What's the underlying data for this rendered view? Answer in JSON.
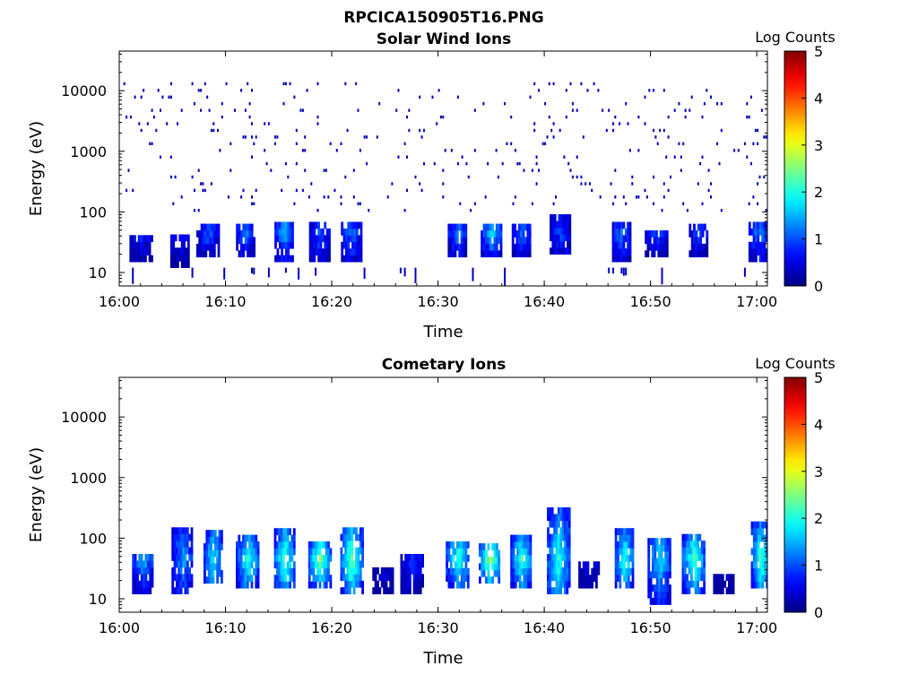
{
  "figure_title": "RPCICA150905T16.PNG",
  "colorbar": {
    "label": "Log Counts",
    "ticks": [
      "0",
      "1",
      "2",
      "3",
      "4",
      "5"
    ],
    "colormap": "jet",
    "range": [
      0,
      5
    ]
  },
  "chart_data": [
    {
      "type": "heatmap",
      "title": "Solar Wind Ions",
      "xlabel": "Time",
      "ylabel": "Energy (eV)",
      "xlim": [
        "16:00",
        "17:01"
      ],
      "ylim": [
        6,
        45000
      ],
      "yscale": "log",
      "xticks": [
        "16:00",
        "16:10",
        "16:20",
        "16:30",
        "16:40",
        "16:50",
        "17:00"
      ],
      "yticks": [
        "10",
        "100",
        "1000",
        "10000"
      ],
      "ytick_values": [
        10,
        100,
        1000,
        10000
      ],
      "colorbar_label": "Log Counts",
      "value_range": [
        0,
        5
      ],
      "clusters": [
        {
          "t_min": 2.0,
          "e_low": 15,
          "e_high": 40,
          "peak": 0.9
        },
        {
          "t_min": 5.7,
          "e_low": 12,
          "e_high": 40,
          "peak": 0.9
        },
        {
          "t_min": 8.3,
          "e_low": 18,
          "e_high": 60,
          "peak": 1.0
        },
        {
          "t_min": 11.8,
          "e_low": 18,
          "e_high": 60,
          "peak": 1.3
        },
        {
          "t_min": 15.5,
          "e_low": 15,
          "e_high": 60,
          "peak": 1.6
        },
        {
          "t_min": 18.8,
          "e_low": 15,
          "e_high": 60,
          "peak": 1.1
        },
        {
          "t_min": 21.8,
          "e_low": 15,
          "e_high": 60,
          "peak": 1.2
        },
        {
          "t_min": 31.8,
          "e_low": 18,
          "e_high": 55,
          "peak": 1.3
        },
        {
          "t_min": 35.0,
          "e_low": 18,
          "e_high": 55,
          "peak": 1.7
        },
        {
          "t_min": 37.8,
          "e_low": 18,
          "e_high": 55,
          "peak": 1.2
        },
        {
          "t_min": 41.5,
          "e_low": 20,
          "e_high": 90,
          "peak": 0.9
        },
        {
          "t_min": 47.2,
          "e_low": 15,
          "e_high": 60,
          "peak": 1.2
        },
        {
          "t_min": 50.5,
          "e_low": 18,
          "e_high": 45,
          "peak": 0.9
        },
        {
          "t_min": 54.5,
          "e_low": 18,
          "e_high": 60,
          "peak": 1.0
        },
        {
          "t_min": 60.3,
          "e_low": 15,
          "e_high": 60,
          "peak": 1.3
        }
      ],
      "background": {
        "e_low": 100,
        "e_high": 15000,
        "level": 0.3
      }
    },
    {
      "type": "heatmap",
      "title": "Cometary Ions",
      "xlabel": "Time",
      "ylabel": "Energy (eV)",
      "xlim": [
        "16:00",
        "17:01"
      ],
      "ylim": [
        6,
        45000
      ],
      "yscale": "log",
      "xticks": [
        "16:00",
        "16:10",
        "16:20",
        "16:30",
        "16:40",
        "16:50",
        "17:00"
      ],
      "yticks": [
        "10",
        "100",
        "1000",
        "10000"
      ],
      "ytick_values": [
        10,
        100,
        1000,
        10000
      ],
      "colorbar_label": "Log Counts",
      "value_range": [
        0,
        5
      ],
      "clusters": [
        {
          "t_min": 2.2,
          "e_low": 12,
          "e_high": 45,
          "peak": 1.6
        },
        {
          "t_min": 5.9,
          "e_low": 12,
          "e_high": 150,
          "peak": 1.4
        },
        {
          "t_min": 8.8,
          "e_low": 18,
          "e_high": 120,
          "peak": 2.0
        },
        {
          "t_min": 12.0,
          "e_low": 15,
          "e_high": 110,
          "peak": 2.1
        },
        {
          "t_min": 15.5,
          "e_low": 15,
          "e_high": 140,
          "peak": 2.3
        },
        {
          "t_min": 18.8,
          "e_low": 15,
          "e_high": 70,
          "peak": 2.6
        },
        {
          "t_min": 21.8,
          "e_low": 12,
          "e_high": 120,
          "peak": 2.5
        },
        {
          "t_min": 24.8,
          "e_low": 12,
          "e_high": 30,
          "peak": 0.9
        },
        {
          "t_min": 27.5,
          "e_low": 12,
          "e_high": 50,
          "peak": 0.9
        },
        {
          "t_min": 31.8,
          "e_low": 15,
          "e_high": 80,
          "peak": 2.2
        },
        {
          "t_min": 34.8,
          "e_low": 18,
          "e_high": 80,
          "peak": 2.7
        },
        {
          "t_min": 37.8,
          "e_low": 15,
          "e_high": 90,
          "peak": 2.2
        },
        {
          "t_min": 41.3,
          "e_low": 12,
          "e_high": 320,
          "peak": 2.1
        },
        {
          "t_min": 44.2,
          "e_low": 15,
          "e_high": 35,
          "peak": 0.9
        },
        {
          "t_min": 47.5,
          "e_low": 15,
          "e_high": 120,
          "peak": 2.1
        },
        {
          "t_min": 50.8,
          "e_low": 8,
          "e_high": 80,
          "peak": 1.8
        },
        {
          "t_min": 54.0,
          "e_low": 12,
          "e_high": 110,
          "peak": 2.3
        },
        {
          "t_min": 56.8,
          "e_low": 12,
          "e_high": 25,
          "peak": 0.9
        },
        {
          "t_min": 60.3,
          "e_low": 15,
          "e_high": 150,
          "peak": 2.3
        }
      ]
    }
  ]
}
